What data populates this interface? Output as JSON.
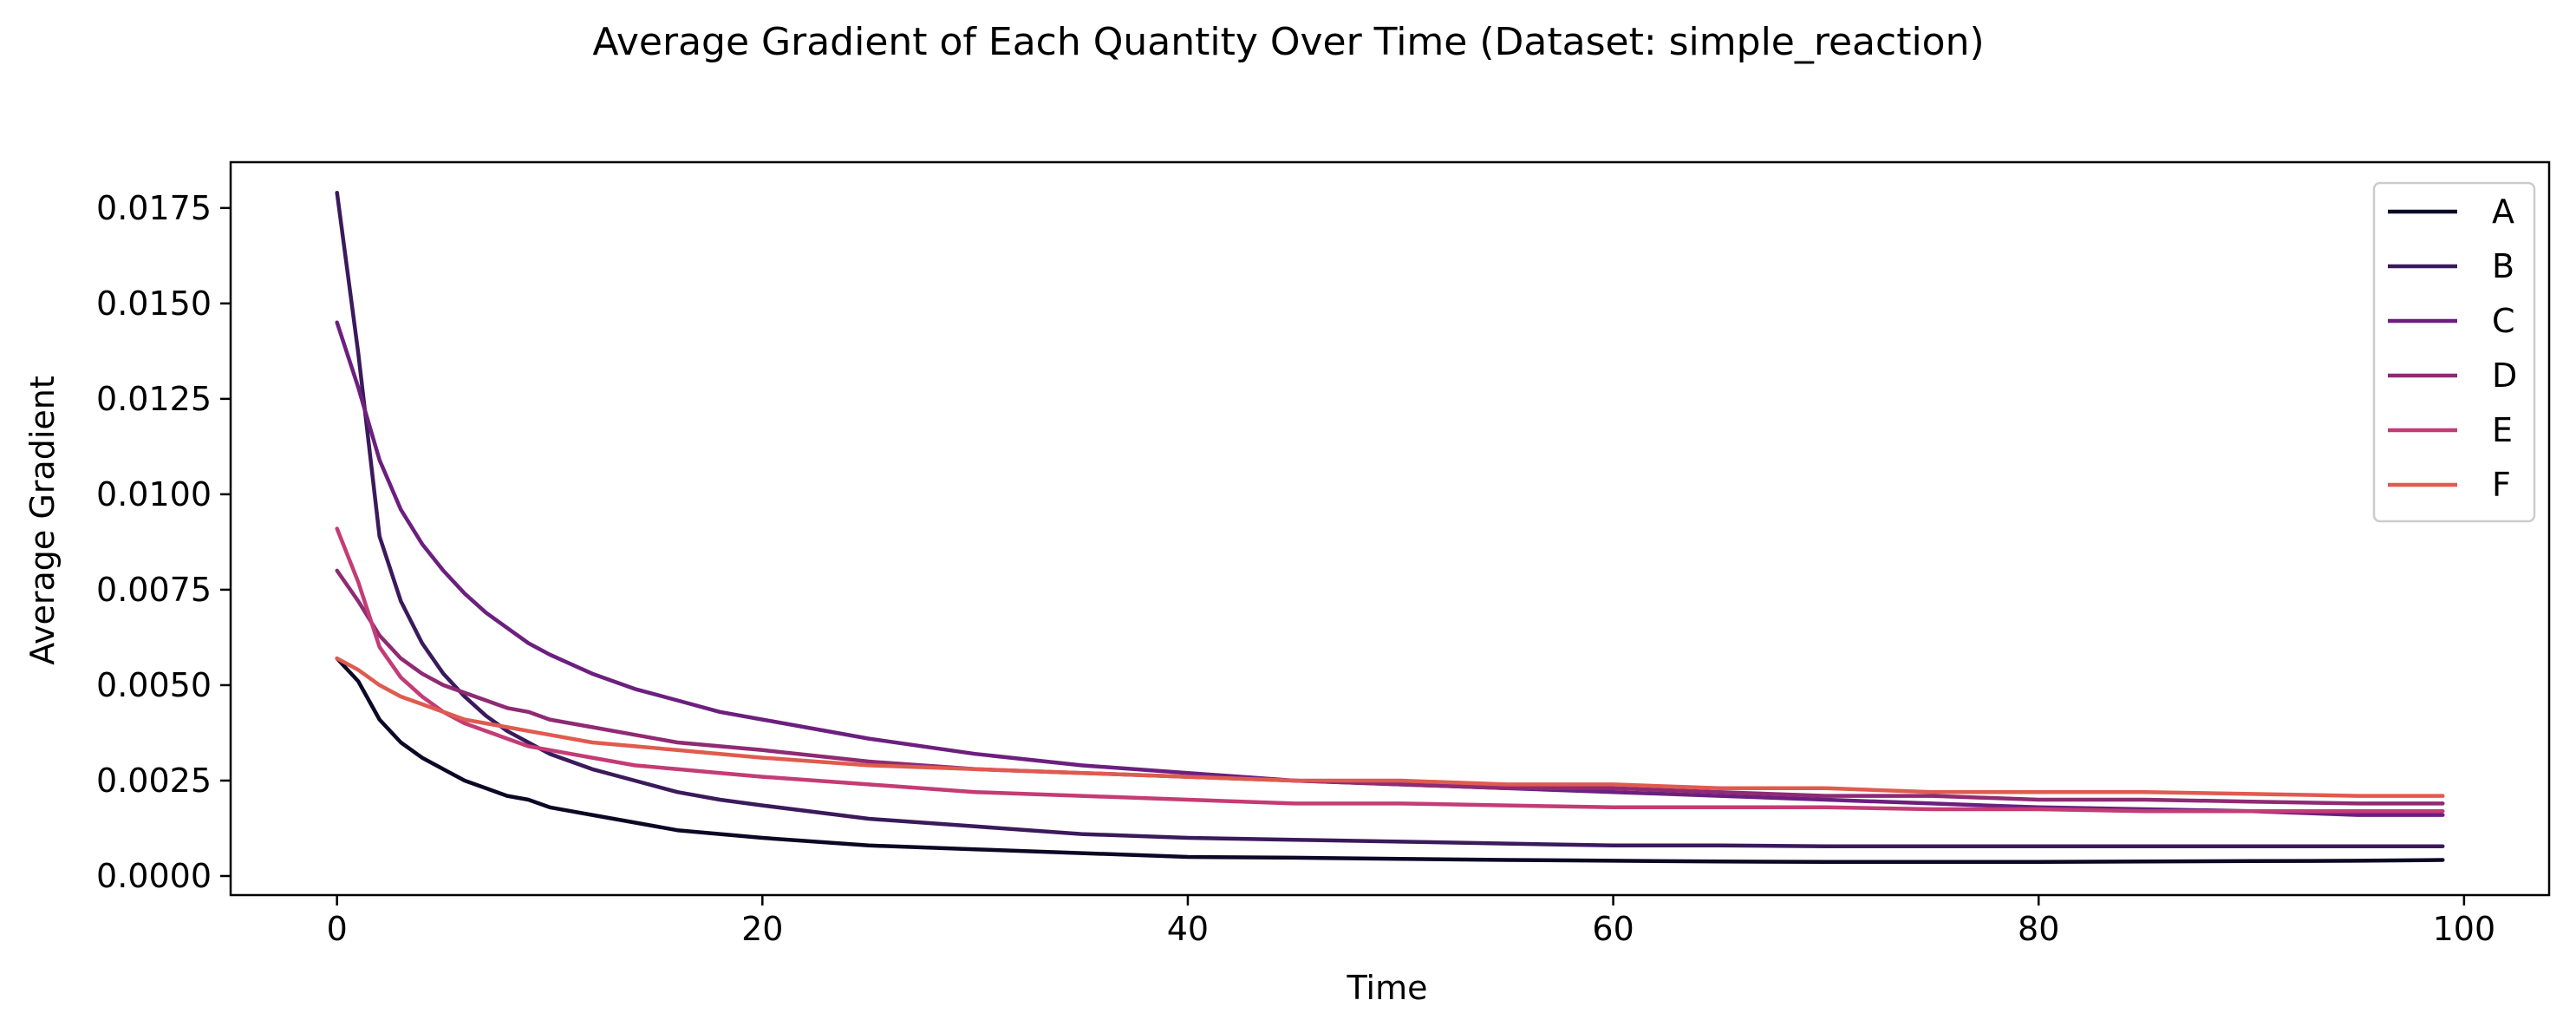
{
  "chart_data": {
    "type": "line",
    "title": "Average Gradient of Each Quantity Over Time (Dataset: simple_reaction)",
    "xlabel": "Time",
    "ylabel": "Average Gradient",
    "xlim": [
      -5,
      104
    ],
    "ylim": [
      -0.0005,
      0.0187
    ],
    "xticks": [
      0,
      20,
      40,
      60,
      80,
      100
    ],
    "xtick_labels": [
      "0",
      "20",
      "40",
      "60",
      "80",
      "100"
    ],
    "yticks": [
      0,
      0.0025,
      0.005,
      0.0075,
      0.01,
      0.0125,
      0.015,
      0.0175
    ],
    "ytick_labels": [
      "0.0000",
      "0.0025",
      "0.0050",
      "0.0075",
      "0.0100",
      "0.0125",
      "0.0150",
      "0.0175"
    ],
    "grid": false,
    "legend_position": "top-right",
    "x": [
      0,
      1,
      2,
      3,
      4,
      5,
      6,
      7,
      8,
      9,
      10,
      12,
      14,
      16,
      18,
      20,
      25,
      30,
      35,
      40,
      45,
      50,
      55,
      60,
      65,
      70,
      75,
      80,
      85,
      90,
      95,
      99
    ],
    "series": [
      {
        "name": "A",
        "color": "#0c0725",
        "values": [
          0.0057,
          0.0051,
          0.0041,
          0.0035,
          0.0031,
          0.0028,
          0.0025,
          0.0023,
          0.0021,
          0.002,
          0.0018,
          0.0016,
          0.0014,
          0.0012,
          0.0011,
          0.001,
          0.0008,
          0.0007,
          0.0006,
          0.0005,
          0.00048,
          0.00045,
          0.00042,
          0.0004,
          0.00038,
          0.00037,
          0.00037,
          0.00037,
          0.00038,
          0.00039,
          0.0004,
          0.00042
        ]
      },
      {
        "name": "B",
        "color": "#3b1a5c",
        "values": [
          0.0179,
          0.0137,
          0.0089,
          0.0072,
          0.0061,
          0.0053,
          0.0047,
          0.0042,
          0.0038,
          0.0035,
          0.0032,
          0.0028,
          0.0025,
          0.0022,
          0.002,
          0.00185,
          0.0015,
          0.0013,
          0.0011,
          0.001,
          0.00095,
          0.0009,
          0.00085,
          0.0008,
          0.0008,
          0.00078,
          0.00078,
          0.00078,
          0.00078,
          0.00078,
          0.00078,
          0.00078
        ]
      },
      {
        "name": "C",
        "color": "#6c1f7f",
        "values": [
          0.0145,
          0.0128,
          0.0109,
          0.0096,
          0.0087,
          0.008,
          0.0074,
          0.0069,
          0.0065,
          0.0061,
          0.0058,
          0.0053,
          0.0049,
          0.0046,
          0.0043,
          0.0041,
          0.0036,
          0.0032,
          0.0029,
          0.0027,
          0.0025,
          0.0024,
          0.0023,
          0.0022,
          0.0021,
          0.002,
          0.0019,
          0.0018,
          0.00175,
          0.0017,
          0.0016,
          0.0016
        ]
      },
      {
        "name": "D",
        "color": "#8f2a73",
        "values": [
          0.008,
          0.0072,
          0.0063,
          0.0057,
          0.0053,
          0.005,
          0.0048,
          0.0046,
          0.0044,
          0.0043,
          0.0041,
          0.0039,
          0.0037,
          0.0035,
          0.0034,
          0.0033,
          0.003,
          0.0028,
          0.0027,
          0.0026,
          0.0025,
          0.0024,
          0.0023,
          0.0023,
          0.0022,
          0.0021,
          0.0021,
          0.002,
          0.002,
          0.00195,
          0.0019,
          0.0019
        ]
      },
      {
        "name": "E",
        "color": "#c43c75",
        "values": [
          0.0091,
          0.0077,
          0.006,
          0.0052,
          0.0047,
          0.0043,
          0.004,
          0.0038,
          0.0036,
          0.0034,
          0.0033,
          0.0031,
          0.0029,
          0.0028,
          0.0027,
          0.0026,
          0.0024,
          0.0022,
          0.0021,
          0.002,
          0.0019,
          0.0019,
          0.00185,
          0.0018,
          0.0018,
          0.0018,
          0.00175,
          0.00175,
          0.0017,
          0.0017,
          0.0017,
          0.0017
        ]
      },
      {
        "name": "F",
        "color": "#e05b4f",
        "values": [
          0.0057,
          0.0054,
          0.005,
          0.0047,
          0.0045,
          0.0043,
          0.0041,
          0.004,
          0.0039,
          0.0038,
          0.0037,
          0.0035,
          0.0034,
          0.0033,
          0.0032,
          0.0031,
          0.0029,
          0.0028,
          0.0027,
          0.0026,
          0.0025,
          0.0025,
          0.0024,
          0.0024,
          0.0023,
          0.0023,
          0.0022,
          0.0022,
          0.0022,
          0.00215,
          0.0021,
          0.0021
        ]
      }
    ]
  }
}
